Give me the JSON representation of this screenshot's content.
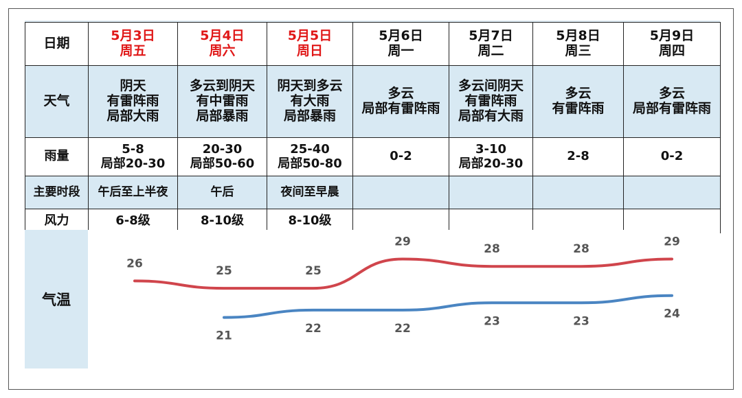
{
  "headers": {
    "date": "日期",
    "weather": "天气",
    "rain": "雨量",
    "period": "主要时段",
    "wind": "风力",
    "temp": "气温"
  },
  "days": [
    {
      "date": "5月3日",
      "dow": "周五",
      "red": true,
      "weather": [
        "阴天",
        "有雷阵雨",
        "局部大雨"
      ],
      "rain": [
        "5-8",
        "局部20-30"
      ],
      "period": "午后至上半夜",
      "wind": "6-8级"
    },
    {
      "date": "5月4日",
      "dow": "周六",
      "red": true,
      "weather": [
        "多云到阴天",
        "有中雷雨",
        "局部暴雨"
      ],
      "rain": [
        "20-30",
        "局部50-60"
      ],
      "period": "午后",
      "wind": "8-10级"
    },
    {
      "date": "5月5日",
      "dow": "周日",
      "red": true,
      "weather": [
        "阴天到多云",
        "有大雨",
        "局部暴雨"
      ],
      "rain": [
        "25-40",
        "局部50-80"
      ],
      "period": "夜间至早晨",
      "wind": "8-10级"
    },
    {
      "date": "5月6日",
      "dow": "周一",
      "red": false,
      "weather": [
        "多云",
        "局部有雷阵雨"
      ],
      "rain": [
        "0-2"
      ],
      "period": "",
      "wind": ""
    },
    {
      "date": "5月7日",
      "dow": "周二",
      "red": false,
      "weather": [
        "多云间阴天",
        "有雷阵雨",
        "局部有大雨"
      ],
      "rain": [
        "3-10",
        "局部20-30"
      ],
      "period": "",
      "wind": ""
    },
    {
      "date": "5月8日",
      "dow": "周三",
      "red": false,
      "weather": [
        "多云",
        "有雷阵雨"
      ],
      "rain": [
        "2-8"
      ],
      "period": "",
      "wind": ""
    },
    {
      "date": "5月9日",
      "dow": "周四",
      "red": false,
      "weather": [
        "多云",
        "局部有雷阵雨"
      ],
      "rain": [
        "0-2"
      ],
      "period": "",
      "wind": ""
    }
  ],
  "chart_data": {
    "type": "line",
    "categories": [
      "5月3日",
      "5月4日",
      "5月5日",
      "5月6日",
      "5月7日",
      "5月8日",
      "5月9日"
    ],
    "series": [
      {
        "values": [
          26,
          25,
          25,
          29,
          28,
          28,
          29
        ],
        "color": "#d0454c"
      },
      {
        "values": [
          null,
          21,
          22,
          22,
          23,
          23,
          24
        ],
        "color": "#4a85c2"
      }
    ],
    "ylim": [
      14,
      33
    ],
    "grid": false,
    "legend": "none"
  }
}
